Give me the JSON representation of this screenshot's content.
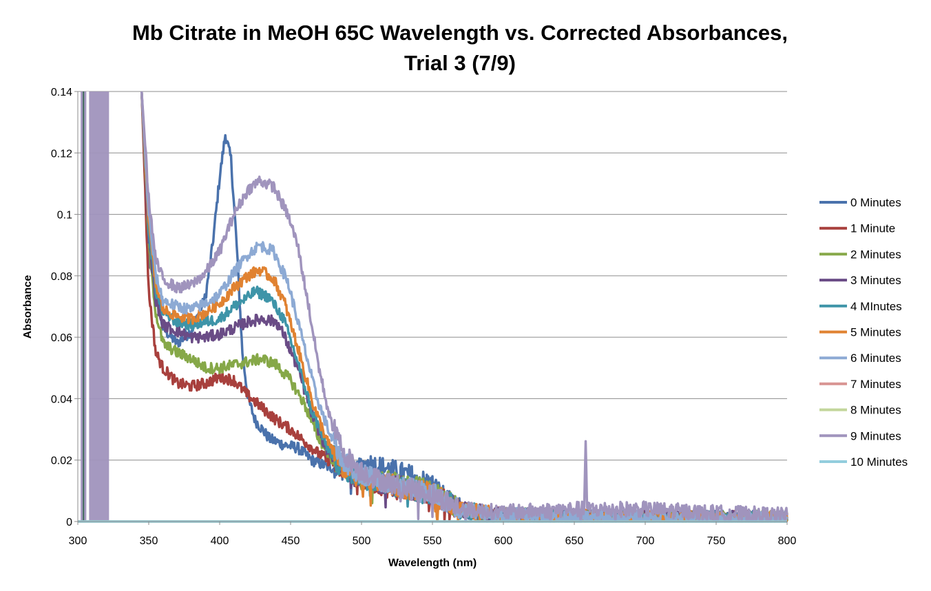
{
  "chart_data": {
    "type": "line",
    "title_line1": "Mb Citrate in MeOH 65C Wavelength vs. Corrected Absorbances,",
    "title_line2": "Trial 3 (7/9)",
    "xlabel": "Wavelength (nm)",
    "ylabel": "Absorbance",
    "xlim": [
      300,
      800
    ],
    "ylim": [
      0,
      0.14
    ],
    "x_ticks": [
      "300",
      "350",
      "400",
      "450",
      "500",
      "550",
      "600",
      "650",
      "700",
      "750",
      "800"
    ],
    "y_ticks": [
      "0",
      "0.02",
      "0.04",
      "0.06",
      "0.08",
      "0.1",
      "0.12",
      "0.14"
    ],
    "grid": "horizontal",
    "legend_position": "right",
    "series": [
      {
        "name": "0 Minutes",
        "color": "#4a72ac",
        "points": [
          [
            345,
            0.14
          ],
          [
            350,
            0.085
          ],
          [
            360,
            0.063
          ],
          [
            370,
            0.058
          ],
          [
            380,
            0.062
          ],
          [
            390,
            0.073
          ],
          [
            395,
            0.09
          ],
          [
            400,
            0.112
          ],
          [
            404,
            0.126
          ],
          [
            408,
            0.118
          ],
          [
            412,
            0.09
          ],
          [
            416,
            0.055
          ],
          [
            420,
            0.04
          ],
          [
            425,
            0.033
          ],
          [
            435,
            0.027
          ],
          [
            445,
            0.025
          ],
          [
            455,
            0.024
          ],
          [
            465,
            0.02
          ],
          [
            475,
            0.018
          ],
          [
            485,
            0.017
          ],
          [
            495,
            0.016
          ],
          [
            505,
            0.019
          ],
          [
            520,
            0.017
          ],
          [
            535,
            0.015
          ],
          [
            550,
            0.012
          ],
          [
            565,
            0.005
          ],
          [
            580,
            0.002
          ],
          [
            620,
            0.002
          ],
          [
            700,
            0.001
          ],
          [
            800,
            0.001
          ]
        ]
      },
      {
        "name": "1 Minute",
        "color": "#a8403d",
        "points": [
          [
            345,
            0.14
          ],
          [
            350,
            0.075
          ],
          [
            355,
            0.055
          ],
          [
            360,
            0.05
          ],
          [
            370,
            0.045
          ],
          [
            380,
            0.044
          ],
          [
            390,
            0.045
          ],
          [
            400,
            0.047
          ],
          [
            410,
            0.046
          ],
          [
            420,
            0.041
          ],
          [
            430,
            0.037
          ],
          [
            440,
            0.033
          ],
          [
            450,
            0.03
          ],
          [
            460,
            0.026
          ],
          [
            470,
            0.022
          ],
          [
            480,
            0.019
          ],
          [
            490,
            0.016
          ],
          [
            500,
            0.014
          ],
          [
            520,
            0.011
          ],
          [
            550,
            0.009
          ],
          [
            570,
            0.004
          ],
          [
            600,
            0.002
          ],
          [
            700,
            0.001
          ],
          [
            800,
            0.001
          ]
        ]
      },
      {
        "name": "2 Minutes",
        "color": "#86a848",
        "points": [
          [
            345,
            0.14
          ],
          [
            350,
            0.09
          ],
          [
            355,
            0.068
          ],
          [
            360,
            0.058
          ],
          [
            370,
            0.055
          ],
          [
            380,
            0.053
          ],
          [
            390,
            0.05
          ],
          [
            400,
            0.05
          ],
          [
            410,
            0.051
          ],
          [
            420,
            0.052
          ],
          [
            430,
            0.053
          ],
          [
            440,
            0.051
          ],
          [
            450,
            0.046
          ],
          [
            460,
            0.038
          ],
          [
            470,
            0.027
          ],
          [
            480,
            0.02
          ],
          [
            490,
            0.016
          ],
          [
            500,
            0.014
          ],
          [
            520,
            0.013
          ],
          [
            550,
            0.01
          ],
          [
            570,
            0.004
          ],
          [
            600,
            0.002
          ],
          [
            700,
            0.001
          ],
          [
            800,
            0.001
          ]
        ]
      },
      {
        "name": "3 Minutes",
        "color": "#6a4c86",
        "points": [
          [
            345,
            0.14
          ],
          [
            350,
            0.092
          ],
          [
            355,
            0.072
          ],
          [
            360,
            0.064
          ],
          [
            370,
            0.062
          ],
          [
            380,
            0.06
          ],
          [
            390,
            0.06
          ],
          [
            400,
            0.061
          ],
          [
            410,
            0.063
          ],
          [
            420,
            0.065
          ],
          [
            430,
            0.066
          ],
          [
            440,
            0.065
          ],
          [
            445,
            0.061
          ],
          [
            455,
            0.05
          ],
          [
            465,
            0.035
          ],
          [
            475,
            0.024
          ],
          [
            485,
            0.018
          ],
          [
            495,
            0.015
          ],
          [
            510,
            0.013
          ],
          [
            530,
            0.011
          ],
          [
            550,
            0.009
          ],
          [
            570,
            0.004
          ],
          [
            600,
            0.002
          ],
          [
            700,
            0.001
          ],
          [
            800,
            0.001
          ]
        ]
      },
      {
        "name": "4 MInutes",
        "color": "#3e94a8",
        "points": [
          [
            345,
            0.14
          ],
          [
            350,
            0.095
          ],
          [
            355,
            0.075
          ],
          [
            360,
            0.068
          ],
          [
            370,
            0.065
          ],
          [
            380,
            0.064
          ],
          [
            390,
            0.065
          ],
          [
            400,
            0.066
          ],
          [
            410,
            0.07
          ],
          [
            420,
            0.073
          ],
          [
            425,
            0.075
          ],
          [
            435,
            0.073
          ],
          [
            445,
            0.066
          ],
          [
            455,
            0.052
          ],
          [
            465,
            0.036
          ],
          [
            475,
            0.025
          ],
          [
            485,
            0.018
          ],
          [
            495,
            0.015
          ],
          [
            510,
            0.013
          ],
          [
            530,
            0.011
          ],
          [
            550,
            0.009
          ],
          [
            570,
            0.004
          ],
          [
            600,
            0.002
          ],
          [
            700,
            0.001
          ],
          [
            800,
            0.001
          ]
        ]
      },
      {
        "name": "5 Minutes",
        "color": "#e08231",
        "points": [
          [
            345,
            0.14
          ],
          [
            350,
            0.097
          ],
          [
            355,
            0.077
          ],
          [
            360,
            0.069
          ],
          [
            370,
            0.067
          ],
          [
            380,
            0.066
          ],
          [
            390,
            0.068
          ],
          [
            400,
            0.071
          ],
          [
            410,
            0.076
          ],
          [
            420,
            0.08
          ],
          [
            428,
            0.082
          ],
          [
            438,
            0.079
          ],
          [
            446,
            0.071
          ],
          [
            456,
            0.055
          ],
          [
            466,
            0.038
          ],
          [
            476,
            0.026
          ],
          [
            486,
            0.018
          ],
          [
            496,
            0.015
          ],
          [
            510,
            0.013
          ],
          [
            530,
            0.011
          ],
          [
            550,
            0.009
          ],
          [
            570,
            0.004
          ],
          [
            600,
            0.002
          ],
          [
            700,
            0.001
          ],
          [
            800,
            0.001
          ]
        ]
      },
      {
        "name": "6 Minutes",
        "color": "#8daad4",
        "points": [
          [
            345,
            0.14
          ],
          [
            350,
            0.1
          ],
          [
            355,
            0.08
          ],
          [
            360,
            0.072
          ],
          [
            370,
            0.07
          ],
          [
            380,
            0.069
          ],
          [
            390,
            0.071
          ],
          [
            400,
            0.074
          ],
          [
            410,
            0.081
          ],
          [
            420,
            0.087
          ],
          [
            428,
            0.09
          ],
          [
            438,
            0.088
          ],
          [
            448,
            0.078
          ],
          [
            458,
            0.06
          ],
          [
            468,
            0.041
          ],
          [
            478,
            0.028
          ],
          [
            488,
            0.019
          ],
          [
            498,
            0.016
          ],
          [
            510,
            0.014
          ],
          [
            530,
            0.011
          ],
          [
            550,
            0.009
          ],
          [
            570,
            0.004
          ],
          [
            600,
            0.002
          ],
          [
            700,
            0.001
          ],
          [
            800,
            0.001
          ]
        ]
      },
      {
        "name": "7 Minutes",
        "color": "#d99694",
        "points": [
          [
            300,
            0
          ],
          [
            800,
            0
          ]
        ]
      },
      {
        "name": "8 Minutes",
        "color": "#c3d69b",
        "points": [
          [
            300,
            0
          ],
          [
            800,
            0
          ]
        ]
      },
      {
        "name": "9 Minutes",
        "color": "#a094bd",
        "points": [
          [
            345,
            0.14
          ],
          [
            350,
            0.105
          ],
          [
            355,
            0.085
          ],
          [
            360,
            0.079
          ],
          [
            370,
            0.076
          ],
          [
            380,
            0.077
          ],
          [
            390,
            0.081
          ],
          [
            400,
            0.088
          ],
          [
            410,
            0.1
          ],
          [
            420,
            0.108
          ],
          [
            428,
            0.111
          ],
          [
            438,
            0.109
          ],
          [
            448,
            0.1
          ],
          [
            455,
            0.09
          ],
          [
            462,
            0.072
          ],
          [
            470,
            0.05
          ],
          [
            478,
            0.033
          ],
          [
            488,
            0.022
          ],
          [
            498,
            0.017
          ],
          [
            510,
            0.014
          ],
          [
            530,
            0.011
          ],
          [
            550,
            0.009
          ],
          [
            570,
            0.004
          ],
          [
            600,
            0.003
          ],
          [
            650,
            0.004
          ],
          [
            657,
            0.004
          ],
          [
            658,
            0.027
          ],
          [
            659,
            0.004
          ],
          [
            700,
            0.004
          ],
          [
            740,
            0.003
          ],
          [
            800,
            0.002
          ]
        ]
      },
      {
        "name": "10 Minutes",
        "color": "#93cddd",
        "points": [
          [
            300,
            0
          ],
          [
            800,
            0
          ]
        ]
      }
    ],
    "noise_band": {
      "series": "9 Minutes",
      "color": "#a094bd",
      "x_range": [
        302,
        322
      ]
    }
  }
}
